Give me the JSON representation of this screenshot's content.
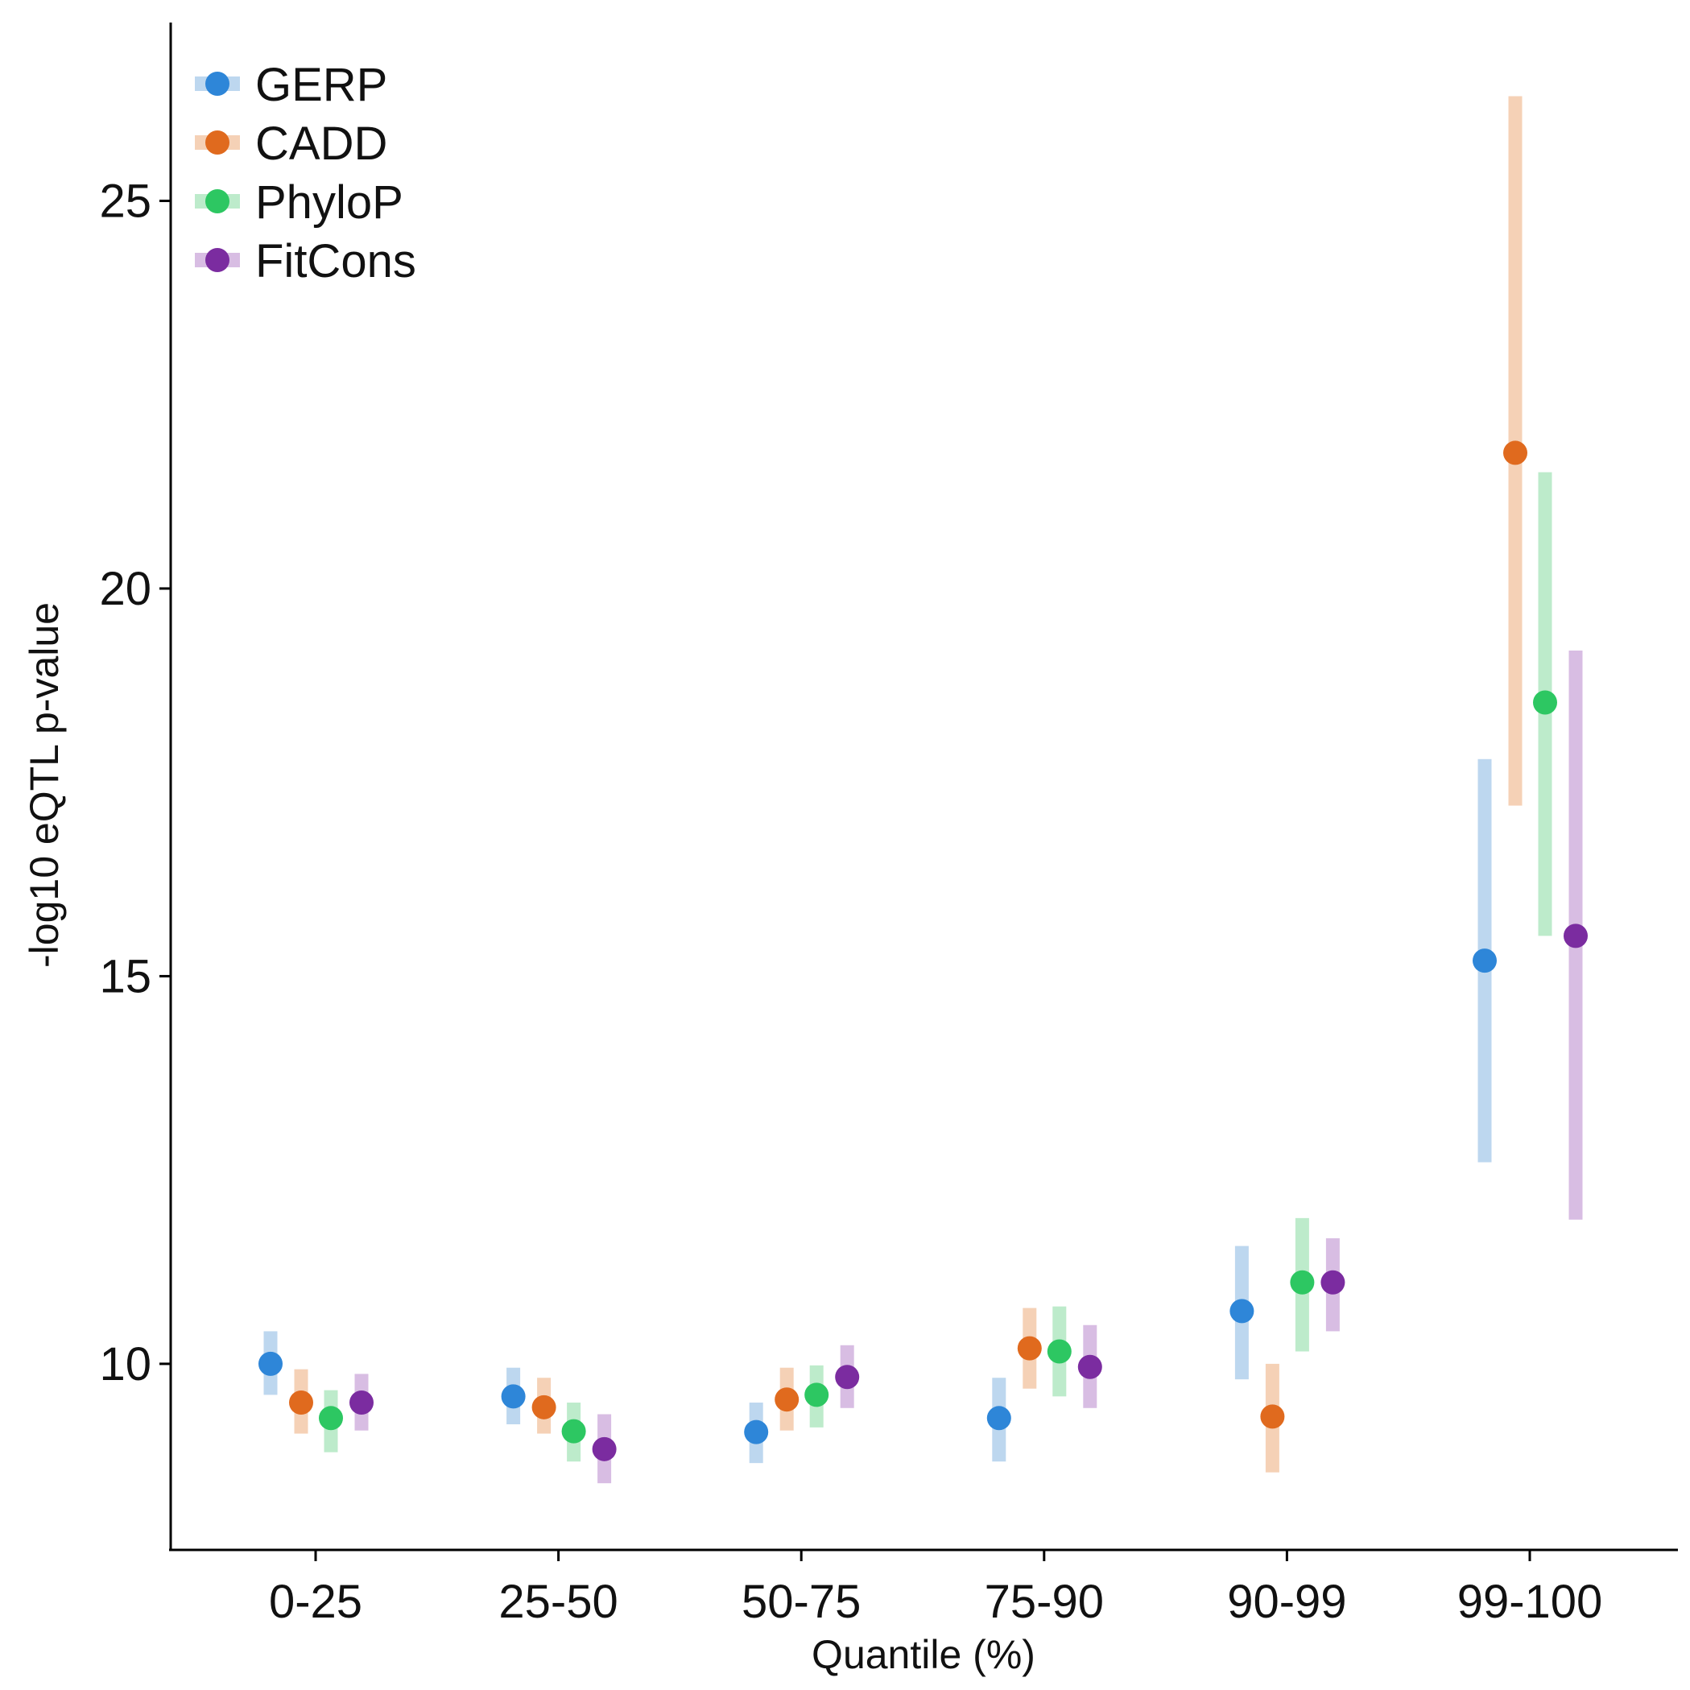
{
  "chart_data": {
    "type": "scatter",
    "title": "",
    "xlabel": "Quantile (%)",
    "ylabel": "-log10 eQTL p-value",
    "categories": [
      "0-25",
      "25-50",
      "50-75",
      "75-90",
      "90-99",
      "99-100"
    ],
    "ylim": [
      7.6,
      27.3
    ],
    "yticks": [
      10,
      15,
      20,
      25
    ],
    "grid": false,
    "legend_position": "top-left",
    "error_bars": "vertical ranges (low, high) around each point",
    "series": [
      {
        "name": "GERP",
        "color": "#2E86D8",
        "band_color": "#BDD7EF",
        "values": [
          10.0,
          9.58,
          9.12,
          9.3,
          10.68,
          15.2
        ],
        "low": [
          9.6,
          9.22,
          8.72,
          8.74,
          9.8,
          12.6
        ],
        "high": [
          10.42,
          9.95,
          9.5,
          9.82,
          11.52,
          17.8
        ]
      },
      {
        "name": "CADD",
        "color": "#E06A1E",
        "band_color": "#F5D1B6",
        "values": [
          9.5,
          9.44,
          9.54,
          10.2,
          9.32,
          21.75
        ],
        "low": [
          9.1,
          9.1,
          9.14,
          9.68,
          8.6,
          17.2
        ],
        "high": [
          9.93,
          9.82,
          9.95,
          10.72,
          10.0,
          26.35
        ]
      },
      {
        "name": "PhyloP",
        "color": "#2DC762",
        "band_color": "#BDEBCB",
        "values": [
          9.3,
          9.13,
          9.6,
          10.16,
          11.05,
          18.53
        ],
        "low": [
          8.86,
          8.74,
          9.18,
          9.58,
          10.16,
          15.52
        ],
        "high": [
          9.66,
          9.5,
          9.98,
          10.74,
          11.88,
          21.5
        ]
      },
      {
        "name": "FitCons",
        "color": "#7B2CA0",
        "band_color": "#D8BDE3",
        "values": [
          9.5,
          8.9,
          9.83,
          9.96,
          11.05,
          15.52
        ],
        "low": [
          9.14,
          8.46,
          9.43,
          9.43,
          10.42,
          11.86
        ],
        "high": [
          9.87,
          9.35,
          10.24,
          10.5,
          11.62,
          19.2
        ]
      }
    ]
  }
}
